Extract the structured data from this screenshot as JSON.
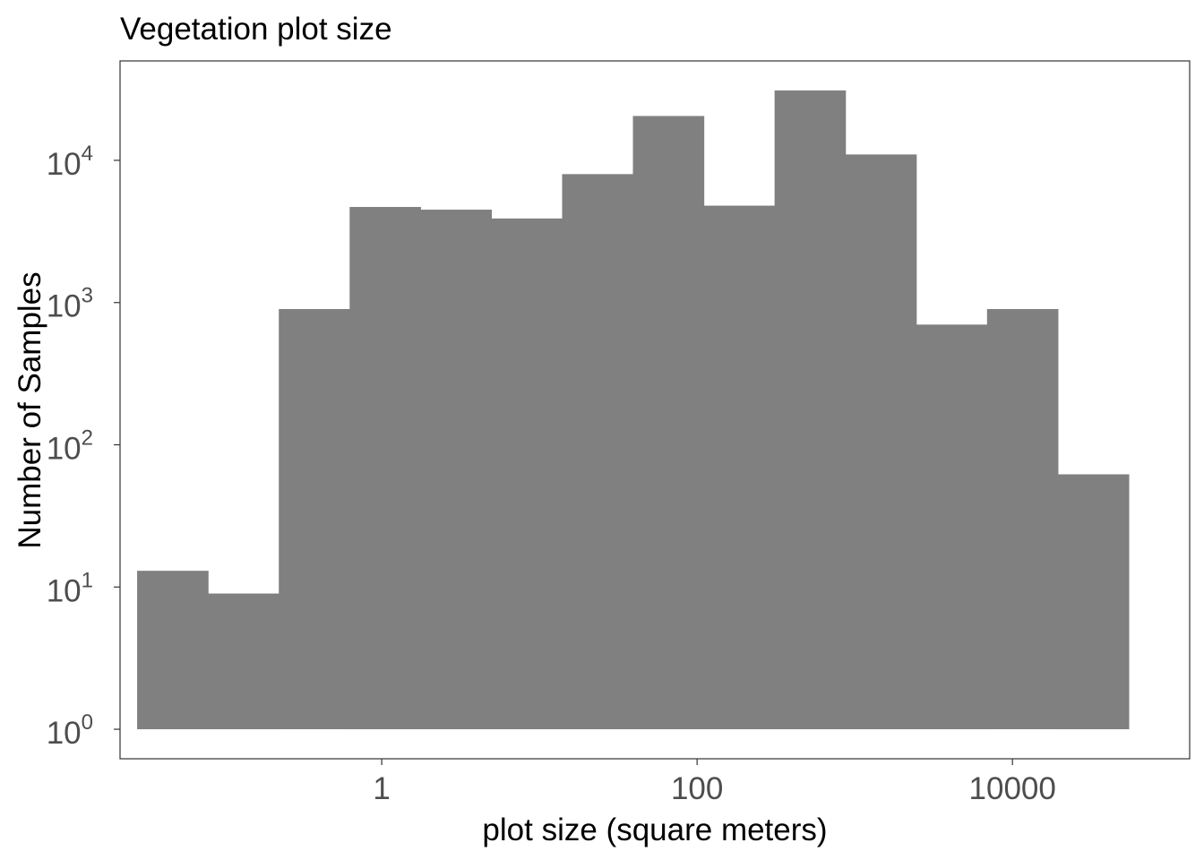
{
  "chart_data": {
    "type": "bar",
    "title": "Vegetation plot size",
    "xlabel": "plot size (square meters)",
    "ylabel": "Number of Samples",
    "x_scale": "log10",
    "y_scale": "log10",
    "xlim": [
      0.0219,
      133000
    ],
    "ylim": [
      0.62,
      50000
    ],
    "x_ticks": [
      {
        "value": 1,
        "label": "1"
      },
      {
        "value": 100,
        "label": "100"
      },
      {
        "value": 10000,
        "label": "10000"
      }
    ],
    "y_ticks": [
      {
        "value": 1,
        "base": "10",
        "exp": "0"
      },
      {
        "value": 10,
        "base": "10",
        "exp": "1"
      },
      {
        "value": 100,
        "base": "10",
        "exp": "2"
      },
      {
        "value": 1000,
        "base": "10",
        "exp": "3"
      },
      {
        "value": 10000,
        "base": "10",
        "exp": "4"
      }
    ],
    "bins": [
      {
        "x0": 0.0281,
        "x1": 0.0791,
        "count": 13
      },
      {
        "x0": 0.0791,
        "x1": 0.2225,
        "count": 9
      },
      {
        "x0": 0.2225,
        "x1": 0.6258,
        "count": 900
      },
      {
        "x0": 0.6258,
        "x1": 1.76,
        "count": 4700
      },
      {
        "x0": 1.76,
        "x1": 4.951,
        "count": 4500
      },
      {
        "x0": 4.951,
        "x1": 13.93,
        "count": 3900
      },
      {
        "x0": 13.93,
        "x1": 39.17,
        "count": 8000
      },
      {
        "x0": 39.17,
        "x1": 110.2,
        "count": 20500
      },
      {
        "x0": 110.2,
        "x1": 310.0,
        "count": 4800
      },
      {
        "x0": 310.0,
        "x1": 871.8,
        "count": 31000
      },
      {
        "x0": 871.8,
        "x1": 2452,
        "count": 11000
      },
      {
        "x0": 2452,
        "x1": 6898,
        "count": 700
      },
      {
        "x0": 6898,
        "x1": 19400,
        "count": 900
      },
      {
        "x0": 19400,
        "x1": 54580,
        "count": 62
      }
    ],
    "bar_color": "#808080",
    "grid": false,
    "legend": "none"
  }
}
